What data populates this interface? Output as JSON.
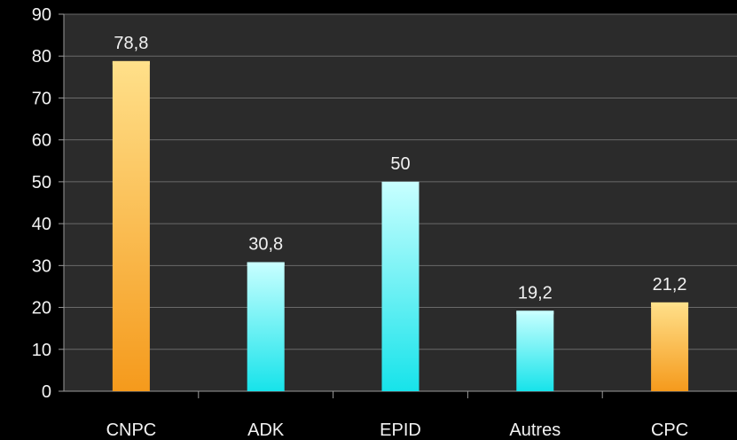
{
  "chart_data": {
    "type": "bar",
    "title": "",
    "xlabel": "",
    "ylabel": "",
    "categories": [
      "CNPC",
      "ADK",
      "EPID",
      "Autres",
      "CPC"
    ],
    "values": [
      78.8,
      30.8,
      50,
      19.2,
      21.2
    ],
    "data_labels": [
      "78,8",
      "30,8",
      "50",
      "19,2",
      "21,2"
    ],
    "bar_colors": [
      "orange",
      "cyan",
      "cyan",
      "cyan",
      "orange"
    ],
    "ylim": [
      0,
      90
    ],
    "yticks": [
      0,
      10,
      20,
      30,
      40,
      50,
      60,
      70,
      80,
      90
    ],
    "grid": true,
    "legend": "none",
    "colors": {
      "background": "#000000",
      "plot_background": "#2b2b2b",
      "gridline": "#6a6a6a",
      "axis": "#9a9a9a",
      "text": "#f2f2f2",
      "orange_light": "#ffe08a",
      "orange_dark": "#f59a1c",
      "cyan_light": "#c8ffff",
      "cyan_dark": "#17e3ea"
    }
  }
}
